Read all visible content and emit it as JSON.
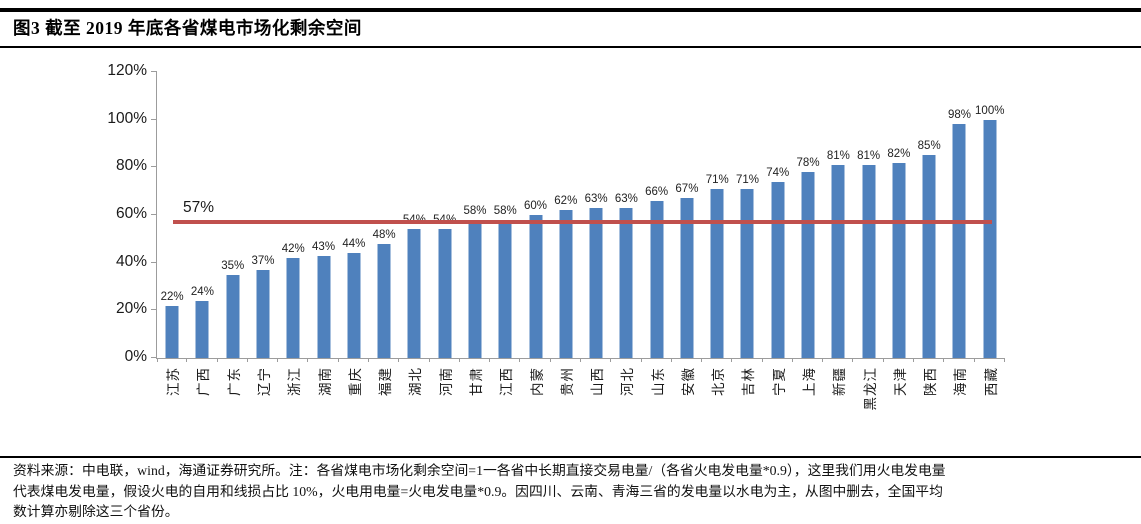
{
  "header": {
    "title": "图3  截至 2019 年底各省煤电市场化剩余空间"
  },
  "chart_data": {
    "type": "bar",
    "title": "截至 2019 年底各省煤电市场化剩余空间",
    "categories": [
      "江苏",
      "广西",
      "广东",
      "辽宁",
      "浙江",
      "湖南",
      "重庆",
      "福建",
      "湖北",
      "河南",
      "甘肃",
      "江西",
      "内蒙",
      "贵州",
      "山西",
      "河北",
      "山东",
      "安徽",
      "北京",
      "吉林",
      "宁夏",
      "上海",
      "新疆",
      "黑龙江",
      "天津",
      "陕西",
      "海南",
      "西藏"
    ],
    "values": [
      22,
      24,
      35,
      37,
      42,
      43,
      44,
      48,
      54,
      54,
      58,
      58,
      60,
      62,
      63,
      63,
      66,
      67,
      71,
      71,
      74,
      78,
      81,
      81,
      82,
      85,
      98,
      100
    ],
    "value_suffix": "%",
    "y_ticks": [
      "0%",
      "20%",
      "40%",
      "60%",
      "80%",
      "100%",
      "120%"
    ],
    "ylim": [
      0,
      120
    ],
    "grid": false,
    "legend": "none",
    "ref_line": {
      "value": 57,
      "label": "57%"
    },
    "colors": {
      "bar": "#4F81BD",
      "ref_line": "#C0504D",
      "axis": "#9C9C9C"
    }
  },
  "footer": {
    "lines": [
      "资料来源：中电联，wind，海通证券研究所。注：各省煤电市场化剩余空间=1一各省中长期直接交易电量/（各省火电发电量*0.9），这里我们用火电发电量",
      "代表煤电发电量，假设火电的自用和线损占比 10%，火电用电量=火电发电量*0.9。因四川、云南、青海三省的发电量以水电为主，从图中删去，全国平均",
      "数计算亦剔除这三个省份。"
    ]
  }
}
